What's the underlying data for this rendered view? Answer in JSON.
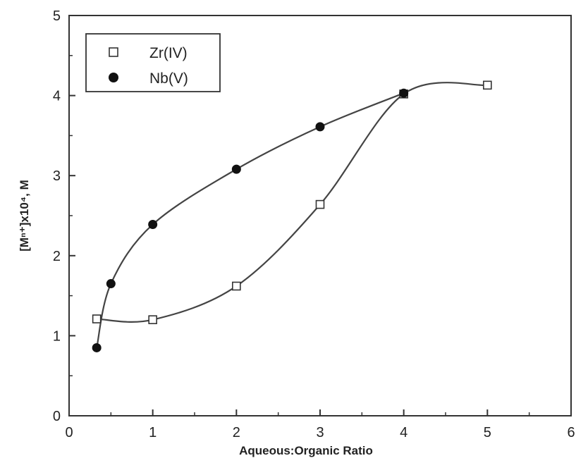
{
  "chart_data": {
    "type": "scatter",
    "xlabel": "Aqueous:Organic Ratio",
    "ylabel": "[Mⁿ⁺]x10⁴, M",
    "xlim": [
      0,
      6
    ],
    "ylim": [
      0,
      5
    ],
    "x_ticks": [
      0,
      1,
      2,
      3,
      4,
      5,
      6
    ],
    "y_ticks": [
      0,
      1,
      2,
      3,
      4,
      5
    ],
    "grid": false,
    "legend_position": "top-left",
    "series": [
      {
        "name": "Zr(IV)",
        "marker": "open-square",
        "color": "#333333",
        "x": [
          0.33,
          1,
          2,
          3,
          4,
          5
        ],
        "y": [
          1.21,
          1.2,
          1.62,
          2.64,
          4.02,
          4.13
        ]
      },
      {
        "name": "Nb(V)",
        "marker": "filled-circle",
        "color": "#111111",
        "x": [
          0.33,
          0.5,
          1,
          2,
          3,
          4
        ],
        "y": [
          0.85,
          1.65,
          2.39,
          3.08,
          3.61,
          4.03
        ]
      }
    ]
  }
}
